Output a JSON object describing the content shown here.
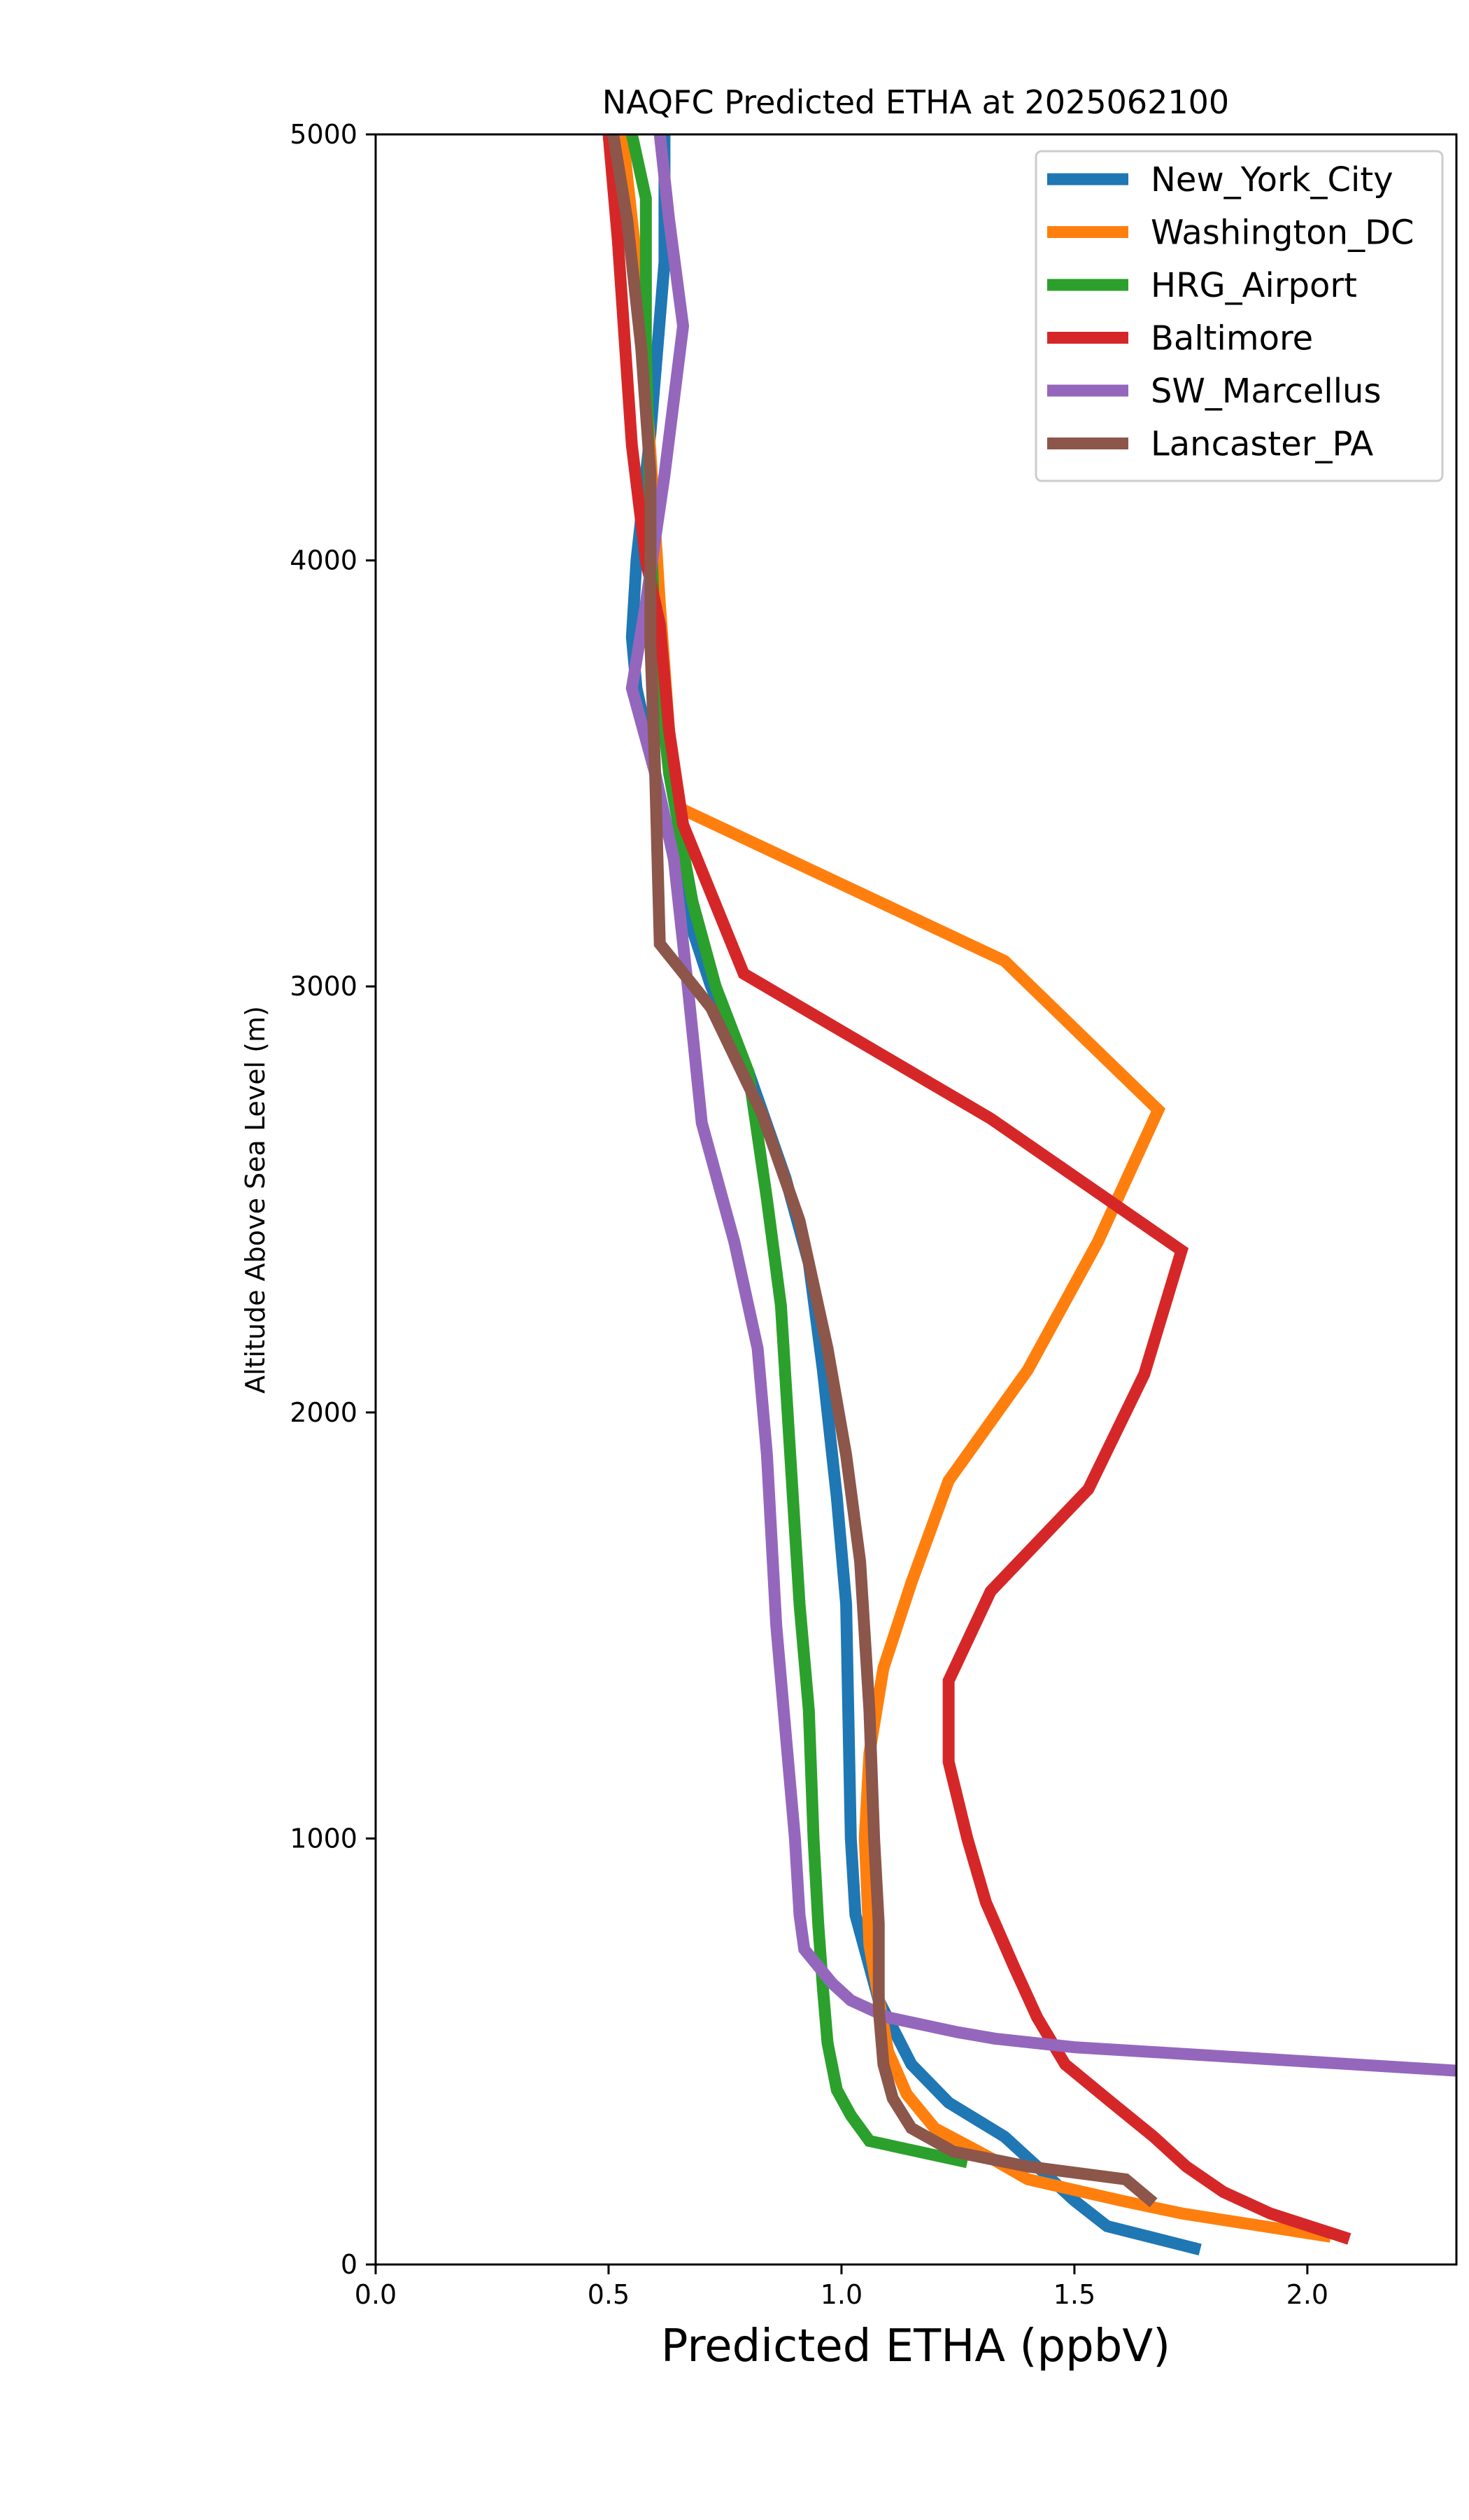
{
  "chart_data": {
    "type": "line",
    "title": "NAQFC Predicted ETHA at 2025062100",
    "xlabel": "Predicted ETHA (ppbV)",
    "ylabel": "Altitude Above Sea Level (m)",
    "xlim": [
      0.0,
      2.32
    ],
    "ylim": [
      0,
      5000
    ],
    "xticks": [
      0.0,
      0.5,
      1.0,
      1.5,
      2.0
    ],
    "xtick_labels": [
      "0.0",
      "0.5",
      "1.0",
      "1.5",
      "2.0"
    ],
    "yticks": [
      0,
      1000,
      2000,
      3000,
      4000,
      5000
    ],
    "ytick_labels": [
      "0",
      "1000",
      "2000",
      "3000",
      "4000",
      "5000"
    ],
    "grid": false,
    "legend_position": "top-right",
    "series": [
      {
        "name": "New_York_City",
        "color": "#1f77b4",
        "points": [
          [
            1.77,
            35
          ],
          [
            1.57,
            90
          ],
          [
            1.5,
            150
          ],
          [
            1.35,
            300
          ],
          [
            1.23,
            380
          ],
          [
            1.15,
            470
          ],
          [
            1.08,
            620
          ],
          [
            1.03,
            820
          ],
          [
            1.02,
            1000
          ],
          [
            1.01,
            1550
          ],
          [
            0.99,
            1800
          ],
          [
            0.96,
            2100
          ],
          [
            0.93,
            2350
          ],
          [
            0.88,
            2550
          ],
          [
            0.8,
            2800
          ],
          [
            0.72,
            3000
          ],
          [
            0.66,
            3200
          ],
          [
            0.6,
            3500
          ],
          [
            0.56,
            3700
          ],
          [
            0.55,
            3820
          ],
          [
            0.56,
            4000
          ],
          [
            0.59,
            4300
          ],
          [
            0.62,
            4700
          ],
          [
            0.62,
            5000
          ]
        ]
      },
      {
        "name": "Washington_DC",
        "color": "#ff7f0e",
        "points": [
          [
            2.05,
            65
          ],
          [
            1.73,
            120
          ],
          [
            1.6,
            150
          ],
          [
            1.4,
            200
          ],
          [
            1.32,
            250
          ],
          [
            1.2,
            320
          ],
          [
            1.14,
            400
          ],
          [
            1.1,
            500
          ],
          [
            1.06,
            750
          ],
          [
            1.05,
            1000
          ],
          [
            1.06,
            1200
          ],
          [
            1.09,
            1400
          ],
          [
            1.15,
            1600
          ],
          [
            1.23,
            1840
          ],
          [
            1.4,
            2100
          ],
          [
            1.55,
            2400
          ],
          [
            1.68,
            2710
          ],
          [
            1.35,
            3060
          ],
          [
            0.65,
            3420
          ],
          [
            0.63,
            3600
          ],
          [
            0.61,
            3900
          ],
          [
            0.59,
            4250
          ],
          [
            0.56,
            4700
          ],
          [
            0.53,
            5000
          ]
        ]
      },
      {
        "name": "HRG_Airport",
        "color": "#2ca02c",
        "points": [
          [
            1.27,
            240
          ],
          [
            1.06,
            290
          ],
          [
            1.02,
            350
          ],
          [
            0.99,
            410
          ],
          [
            0.97,
            520
          ],
          [
            0.96,
            650
          ],
          [
            0.95,
            800
          ],
          [
            0.94,
            1000
          ],
          [
            0.93,
            1300
          ],
          [
            0.91,
            1550
          ],
          [
            0.89,
            1900
          ],
          [
            0.87,
            2250
          ],
          [
            0.84,
            2500
          ],
          [
            0.8,
            2800
          ],
          [
            0.73,
            3000
          ],
          [
            0.68,
            3200
          ],
          [
            0.63,
            3500
          ],
          [
            0.6,
            3800
          ],
          [
            0.59,
            4100
          ],
          [
            0.58,
            4500
          ],
          [
            0.58,
            4850
          ],
          [
            0.55,
            5000
          ]
        ]
      },
      {
        "name": "Baltimore",
        "color": "#d62728",
        "points": [
          [
            2.09,
            60
          ],
          [
            1.92,
            120
          ],
          [
            1.82,
            170
          ],
          [
            1.74,
            230
          ],
          [
            1.67,
            300
          ],
          [
            1.58,
            380
          ],
          [
            1.48,
            470
          ],
          [
            1.42,
            580
          ],
          [
            1.37,
            700
          ],
          [
            1.31,
            850
          ],
          [
            1.27,
            1000
          ],
          [
            1.23,
            1180
          ],
          [
            1.23,
            1370
          ],
          [
            1.32,
            1580
          ],
          [
            1.53,
            1820
          ],
          [
            1.65,
            2090
          ],
          [
            1.73,
            2380
          ],
          [
            1.32,
            2690
          ],
          [
            0.79,
            3030
          ],
          [
            0.66,
            3380
          ],
          [
            0.63,
            3600
          ],
          [
            0.61,
            3850
          ],
          [
            0.58,
            4000
          ],
          [
            0.55,
            4270
          ],
          [
            0.52,
            4750
          ],
          [
            0.5,
            5000
          ]
        ]
      },
      {
        "name": "SW_Marcellus",
        "color": "#9467bd",
        "points": [
          [
            2.32,
            455
          ],
          [
            1.5,
            510
          ],
          [
            1.33,
            530
          ],
          [
            1.25,
            545
          ],
          [
            1.1,
            580
          ],
          [
            1.02,
            620
          ],
          [
            0.98,
            660
          ],
          [
            0.92,
            740
          ],
          [
            0.91,
            820
          ],
          [
            0.9,
            1000
          ],
          [
            0.88,
            1250
          ],
          [
            0.86,
            1500
          ],
          [
            0.84,
            1900
          ],
          [
            0.82,
            2150
          ],
          [
            0.77,
            2400
          ],
          [
            0.7,
            2680
          ],
          [
            0.67,
            3000
          ],
          [
            0.64,
            3300
          ],
          [
            0.6,
            3500
          ],
          [
            0.55,
            3700
          ],
          [
            0.58,
            3900
          ],
          [
            0.62,
            4200
          ],
          [
            0.66,
            4550
          ],
          [
            0.63,
            4800
          ],
          [
            0.61,
            5000
          ]
        ]
      },
      {
        "name": "Lancaster_PA",
        "color": "#8c564b",
        "points": [
          [
            1.67,
            145
          ],
          [
            1.61,
            200
          ],
          [
            1.4,
            230
          ],
          [
            1.24,
            265
          ],
          [
            1.15,
            320
          ],
          [
            1.11,
            390
          ],
          [
            1.09,
            470
          ],
          [
            1.08,
            600
          ],
          [
            1.08,
            800
          ],
          [
            1.07,
            1000
          ],
          [
            1.06,
            1300
          ],
          [
            1.04,
            1650
          ],
          [
            1.01,
            1900
          ],
          [
            0.97,
            2150
          ],
          [
            0.91,
            2450
          ],
          [
            0.83,
            2700
          ],
          [
            0.72,
            2950
          ],
          [
            0.61,
            3100
          ],
          [
            0.6,
            3500
          ],
          [
            0.59,
            3800
          ],
          [
            0.59,
            4200
          ],
          [
            0.57,
            4500
          ],
          [
            0.54,
            4800
          ],
          [
            0.51,
            5000
          ]
        ]
      }
    ]
  }
}
